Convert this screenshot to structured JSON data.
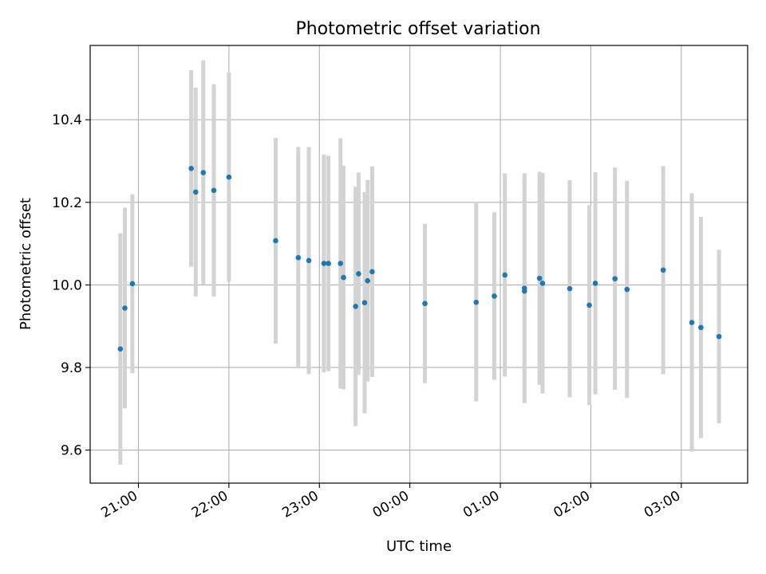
{
  "chart_data": {
    "type": "scatter",
    "title": "Photometric offset variation",
    "xlabel": "UTC time",
    "ylabel": "Photometric offset",
    "x_unit": "UTC",
    "x_tick_labels": [
      "21:00",
      "22:00",
      "23:00",
      "00:00",
      "01:00",
      "02:00",
      "03:00"
    ],
    "y_tick_labels": [
      "9.6",
      "9.8",
      "10.0",
      "10.2",
      "10.4"
    ],
    "ylim": [
      9.52,
      10.58
    ],
    "xlim": [
      "20:28",
      "03:44"
    ],
    "grid": true,
    "legend": "none",
    "colors": {
      "points": "#1f77b4",
      "error_bars": "#d3d3d3",
      "grid": "#b0b0b0"
    },
    "points": [
      {
        "x": "20:48",
        "y": 9.845,
        "err": 0.28
      },
      {
        "x": "20:51",
        "y": 9.944,
        "err": 0.243
      },
      {
        "x": "20:56",
        "y": 10.003,
        "err": 0.217
      },
      {
        "x": "21:35",
        "y": 10.282,
        "err": 0.238
      },
      {
        "x": "21:38",
        "y": 10.225,
        "err": 0.253
      },
      {
        "x": "21:43",
        "y": 10.272,
        "err": 0.272
      },
      {
        "x": "21:50",
        "y": 10.229,
        "err": 0.257
      },
      {
        "x": "22:00",
        "y": 10.261,
        "err": 0.253
      },
      {
        "x": "22:31",
        "y": 10.107,
        "err": 0.249
      },
      {
        "x": "22:46",
        "y": 10.066,
        "err": 0.268
      },
      {
        "x": "22:53",
        "y": 10.059,
        "err": 0.275
      },
      {
        "x": "23:03",
        "y": 10.052,
        "err": 0.264
      },
      {
        "x": "23:06",
        "y": 10.052,
        "err": 0.261
      },
      {
        "x": "23:14",
        "y": 10.052,
        "err": 0.303
      },
      {
        "x": "23:16",
        "y": 10.018,
        "err": 0.271
      },
      {
        "x": "23:24",
        "y": 9.948,
        "err": 0.29
      },
      {
        "x": "23:26",
        "y": 10.027,
        "err": 0.245
      },
      {
        "x": "23:30",
        "y": 9.957,
        "err": 0.268
      },
      {
        "x": "23:32",
        "y": 10.01,
        "err": 0.244
      },
      {
        "x": "23:35",
        "y": 10.032,
        "err": 0.255
      },
      {
        "x": "00:10",
        "y": 9.955,
        "err": 0.193
      },
      {
        "x": "00:44",
        "y": 9.958,
        "err": 0.24
      },
      {
        "x": "00:56",
        "y": 9.973,
        "err": 0.203
      },
      {
        "x": "01:03",
        "y": 10.024,
        "err": 0.246
      },
      {
        "x": "01:16",
        "y": 9.992,
        "err": 0.278
      },
      {
        "x": "01:16",
        "y": 9.985,
        "err": 0.27
      },
      {
        "x": "01:26",
        "y": 10.016,
        "err": 0.258
      },
      {
        "x": "01:28",
        "y": 10.004,
        "err": 0.267
      },
      {
        "x": "01:46",
        "y": 9.991,
        "err": 0.263
      },
      {
        "x": "01:59",
        "y": 9.951,
        "err": 0.242
      },
      {
        "x": "02:03",
        "y": 10.004,
        "err": 0.269
      },
      {
        "x": "02:16",
        "y": 10.015,
        "err": 0.269
      },
      {
        "x": "02:24",
        "y": 9.989,
        "err": 0.263
      },
      {
        "x": "02:48",
        "y": 10.036,
        "err": 0.252
      },
      {
        "x": "03:07",
        "y": 9.909,
        "err": 0.313
      },
      {
        "x": "03:13",
        "y": 9.897,
        "err": 0.268
      },
      {
        "x": "03:25",
        "y": 9.875,
        "err": 0.21
      }
    ]
  }
}
